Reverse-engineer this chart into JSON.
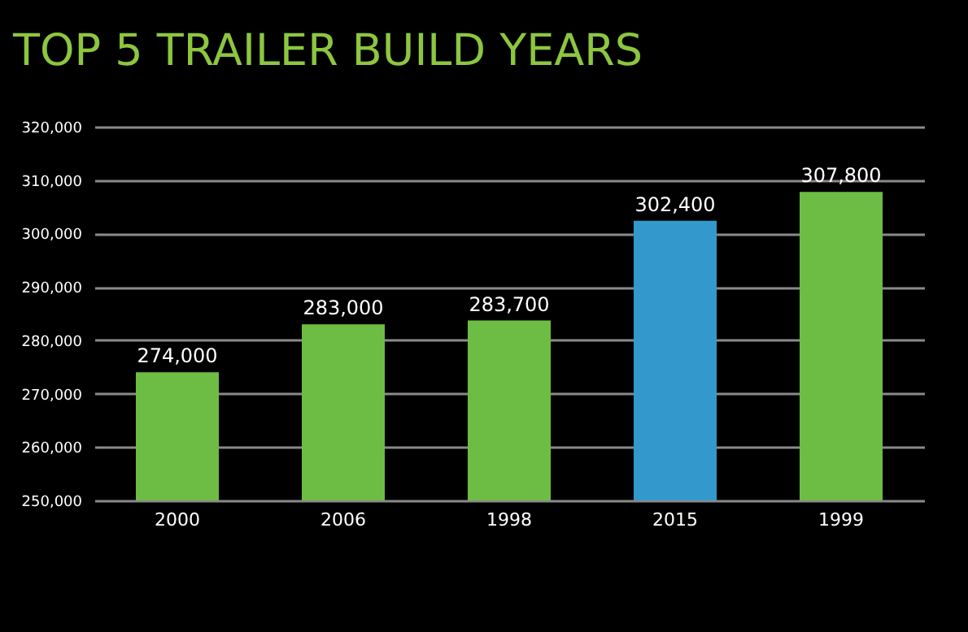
{
  "chart_data": {
    "type": "bar",
    "title": "TOP 5 TRAILER BUILD YEARS",
    "categories": [
      "2000",
      "2006",
      "1998",
      "2015",
      "1999"
    ],
    "values": [
      274000,
      283000,
      283700,
      302400,
      307800
    ],
    "value_labels": [
      "274,000",
      "283,000",
      "283,700",
      "302,400",
      "307,800"
    ],
    "colors": [
      "#6dbd45",
      "#6dbd45",
      "#6dbd45",
      "#3399cc",
      "#6dbd45"
    ],
    "ylim": [
      250000,
      320000
    ],
    "yticks": [
      {
        "value": 250000,
        "label": "250,000"
      },
      {
        "value": 260000,
        "label": "260,000"
      },
      {
        "value": 270000,
        "label": "270,000"
      },
      {
        "value": 280000,
        "label": "280,000"
      },
      {
        "value": 290000,
        "label": "290,000"
      },
      {
        "value": 300000,
        "label": "300,000"
      },
      {
        "value": 310000,
        "label": "310,000"
      },
      {
        "value": 320000,
        "label": "320,000"
      }
    ],
    "grid": "y"
  }
}
